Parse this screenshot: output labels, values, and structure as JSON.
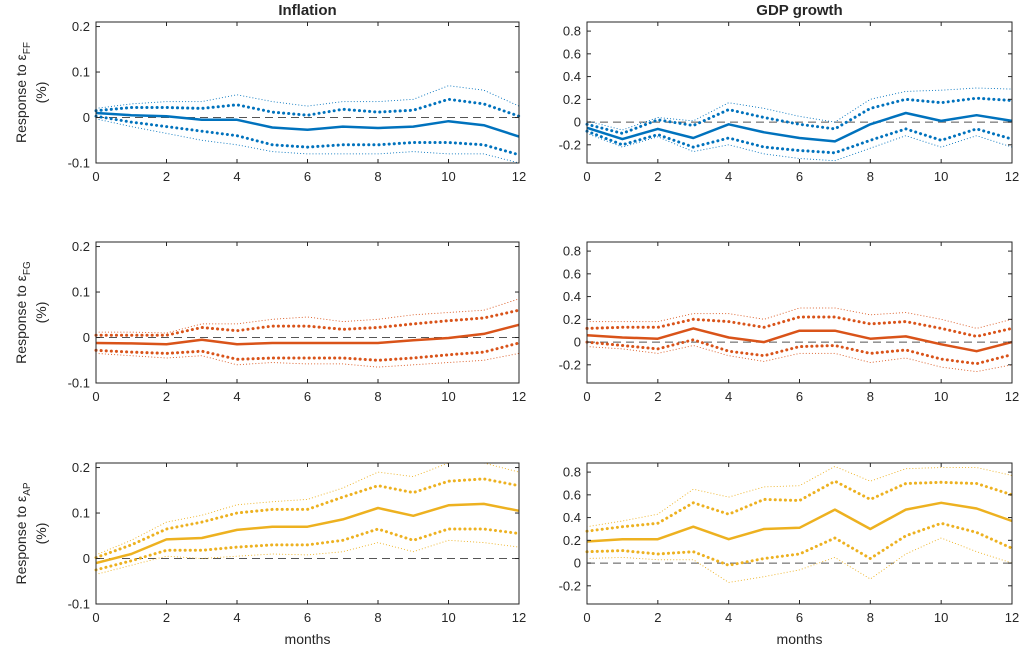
{
  "chart_data": [
    {
      "type": "line",
      "title": "Inflation",
      "ylabel_pre": "Response to ε",
      "ylabel_sub": "FF",
      "ylabel_unit": "(%)",
      "xlabel": "",
      "x": [
        0,
        1,
        2,
        3,
        4,
        5,
        6,
        7,
        8,
        9,
        10,
        11,
        12
      ],
      "xticks": [
        0,
        2,
        4,
        6,
        8,
        10,
        12
      ],
      "yticks": [
        -0.1,
        0,
        0.1,
        0.2
      ],
      "ytick_labels": [
        "-0.1",
        "0",
        "0.1",
        "0.2"
      ],
      "ylim": [
        -0.1,
        0.21
      ],
      "color": "#0072BD",
      "median": [
        0.01,
        0.005,
        0.003,
        -0.005,
        -0.005,
        -0.022,
        -0.027,
        -0.02,
        -0.023,
        -0.02,
        -0.008,
        -0.017,
        -0.042
      ],
      "inner_upper": [
        0.015,
        0.022,
        0.022,
        0.02,
        0.028,
        0.012,
        0.005,
        0.018,
        0.012,
        0.016,
        0.04,
        0.03,
        0.003
      ],
      "inner_lower": [
        0.003,
        -0.01,
        -0.02,
        -0.03,
        -0.04,
        -0.06,
        -0.065,
        -0.06,
        -0.06,
        -0.055,
        -0.055,
        -0.06,
        -0.082
      ],
      "outer_upper": [
        0.02,
        0.03,
        0.035,
        0.035,
        0.05,
        0.035,
        0.025,
        0.035,
        0.035,
        0.04,
        0.07,
        0.06,
        0.025
      ],
      "outer_lower": [
        -0.003,
        -0.02,
        -0.035,
        -0.05,
        -0.06,
        -0.075,
        -0.08,
        -0.08,
        -0.08,
        -0.075,
        -0.08,
        -0.08,
        -0.1
      ]
    },
    {
      "type": "line",
      "title": "GDP growth",
      "xlabel": "",
      "x": [
        0,
        1,
        2,
        3,
        4,
        5,
        6,
        7,
        8,
        9,
        10,
        11,
        12
      ],
      "xticks": [
        0,
        2,
        4,
        6,
        8,
        10,
        12
      ],
      "yticks": [
        -0.2,
        0,
        0.2,
        0.4,
        0.6,
        0.8
      ],
      "ytick_labels": [
        "-0.2",
        "0",
        "0.2",
        "0.4",
        "0.6",
        "0.8"
      ],
      "ylim": [
        -0.36,
        0.88
      ],
      "color": "#0072BD",
      "median": [
        -0.05,
        -0.15,
        -0.06,
        -0.14,
        -0.02,
        -0.09,
        -0.14,
        -0.17,
        -0.02,
        0.08,
        0.01,
        0.06,
        0.01
      ],
      "inner_upper": [
        -0.02,
        -0.1,
        0.02,
        -0.03,
        0.11,
        0.04,
        -0.02,
        -0.06,
        0.12,
        0.2,
        0.17,
        0.21,
        0.19
      ],
      "inner_lower": [
        -0.08,
        -0.2,
        -0.11,
        -0.22,
        -0.14,
        -0.22,
        -0.25,
        -0.27,
        -0.16,
        -0.06,
        -0.16,
        -0.06,
        -0.15
      ],
      "outer_upper": [
        0.01,
        -0.07,
        0.04,
        0.01,
        0.17,
        0.12,
        0.05,
        0.0,
        0.2,
        0.27,
        0.28,
        0.3,
        0.29
      ],
      "outer_lower": [
        -0.1,
        -0.22,
        -0.13,
        -0.26,
        -0.2,
        -0.28,
        -0.32,
        -0.34,
        -0.23,
        -0.12,
        -0.22,
        -0.12,
        -0.22
      ]
    },
    {
      "type": "line",
      "title": "",
      "ylabel_pre": "Response to ε",
      "ylabel_sub": "FG",
      "ylabel_unit": "(%)",
      "xlabel": "",
      "x": [
        0,
        1,
        2,
        3,
        4,
        5,
        6,
        7,
        8,
        9,
        10,
        11,
        12
      ],
      "xticks": [
        0,
        2,
        4,
        6,
        8,
        10,
        12
      ],
      "yticks": [
        -0.1,
        0,
        0.1,
        0.2
      ],
      "ytick_labels": [
        "-0.1",
        "0",
        "0.1",
        "0.2"
      ],
      "ylim": [
        -0.1,
        0.21
      ],
      "color": "#D95319",
      "median": [
        -0.012,
        -0.013,
        -0.015,
        -0.005,
        -0.015,
        -0.012,
        -0.012,
        -0.012,
        -0.012,
        -0.006,
        -0.001,
        0.008,
        0.028
      ],
      "inner_upper": [
        0.005,
        0.005,
        0.005,
        0.022,
        0.015,
        0.025,
        0.025,
        0.018,
        0.022,
        0.03,
        0.037,
        0.043,
        0.06
      ],
      "inner_lower": [
        -0.028,
        -0.032,
        -0.035,
        -0.03,
        -0.048,
        -0.045,
        -0.045,
        -0.045,
        -0.05,
        -0.045,
        -0.038,
        -0.032,
        -0.012
      ],
      "outer_upper": [
        0.012,
        0.012,
        0.01,
        0.03,
        0.03,
        0.04,
        0.045,
        0.035,
        0.04,
        0.05,
        0.055,
        0.06,
        0.085
      ],
      "outer_lower": [
        -0.035,
        -0.04,
        -0.045,
        -0.04,
        -0.06,
        -0.055,
        -0.058,
        -0.058,
        -0.065,
        -0.06,
        -0.055,
        -0.05,
        -0.035
      ]
    },
    {
      "type": "line",
      "title": "",
      "xlabel": "",
      "x": [
        0,
        1,
        2,
        3,
        4,
        5,
        6,
        7,
        8,
        9,
        10,
        11,
        12
      ],
      "xticks": [
        0,
        2,
        4,
        6,
        8,
        10,
        12
      ],
      "yticks": [
        -0.2,
        0,
        0.2,
        0.4,
        0.6,
        0.8
      ],
      "ytick_labels": [
        "-0.2",
        "0",
        "0.2",
        "0.4",
        "0.6",
        "0.8"
      ],
      "ylim": [
        -0.36,
        0.88
      ],
      "color": "#D95319",
      "median": [
        0.06,
        0.04,
        0.03,
        0.12,
        0.04,
        0.0,
        0.1,
        0.1,
        0.03,
        0.05,
        -0.02,
        -0.08,
        0.0
      ],
      "inner_upper": [
        0.12,
        0.13,
        0.13,
        0.2,
        0.18,
        0.13,
        0.22,
        0.22,
        0.16,
        0.18,
        0.12,
        0.05,
        0.12
      ],
      "inner_lower": [
        0.0,
        -0.03,
        -0.06,
        0.02,
        -0.08,
        -0.12,
        -0.04,
        -0.03,
        -0.1,
        -0.07,
        -0.15,
        -0.19,
        -0.11
      ],
      "outer_upper": [
        0.18,
        0.18,
        0.18,
        0.25,
        0.25,
        0.2,
        0.3,
        0.3,
        0.24,
        0.26,
        0.2,
        0.12,
        0.2
      ],
      "outer_lower": [
        -0.04,
        -0.06,
        -0.1,
        -0.03,
        -0.12,
        -0.17,
        -0.1,
        -0.1,
        -0.18,
        -0.14,
        -0.22,
        -0.26,
        -0.2
      ]
    },
    {
      "type": "line",
      "title": "",
      "ylabel_pre": "Response to ε",
      "ylabel_sub": "AP",
      "ylabel_unit": "(%)",
      "xlabel": "months",
      "x": [
        0,
        1,
        2,
        3,
        4,
        5,
        6,
        7,
        8,
        9,
        10,
        11,
        12
      ],
      "xticks": [
        0,
        2,
        4,
        6,
        8,
        10,
        12
      ],
      "yticks": [
        -0.1,
        0,
        0.1,
        0.2
      ],
      "ytick_labels": [
        "-0.1",
        "0",
        "0.1",
        "0.2"
      ],
      "ylim": [
        -0.1,
        0.21
      ],
      "color": "#EDB120",
      "median": [
        -0.01,
        0.01,
        0.042,
        0.045,
        0.063,
        0.07,
        0.07,
        0.086,
        0.111,
        0.094,
        0.117,
        0.12,
        0.105
      ],
      "inner_upper": [
        0.002,
        0.03,
        0.065,
        0.08,
        0.1,
        0.108,
        0.108,
        0.135,
        0.16,
        0.145,
        0.17,
        0.175,
        0.16
      ],
      "inner_lower": [
        -0.025,
        -0.005,
        0.018,
        0.018,
        0.025,
        0.03,
        0.03,
        0.04,
        0.065,
        0.04,
        0.065,
        0.065,
        0.055
      ],
      "outer_upper": [
        0.008,
        0.04,
        0.08,
        0.095,
        0.118,
        0.125,
        0.13,
        0.155,
        0.19,
        0.18,
        0.21,
        0.21,
        0.19
      ],
      "outer_lower": [
        -0.035,
        -0.015,
        0.005,
        0.0,
        0.005,
        0.01,
        0.008,
        0.015,
        0.035,
        0.015,
        0.04,
        0.035,
        0.025
      ]
    },
    {
      "type": "line",
      "title": "",
      "xlabel": "months",
      "x": [
        0,
        1,
        2,
        3,
        4,
        5,
        6,
        7,
        8,
        9,
        10,
        11,
        12
      ],
      "xticks": [
        0,
        2,
        4,
        6,
        8,
        10,
        12
      ],
      "yticks": [
        -0.2,
        0,
        0.2,
        0.4,
        0.6,
        0.8
      ],
      "ytick_labels": [
        "-0.2",
        "0",
        "0.2",
        "0.4",
        "0.6",
        "0.8"
      ],
      "ylim": [
        -0.36,
        0.88
      ],
      "color": "#EDB120",
      "median": [
        0.19,
        0.21,
        0.21,
        0.32,
        0.21,
        0.3,
        0.31,
        0.47,
        0.3,
        0.47,
        0.53,
        0.48,
        0.37
      ],
      "inner_upper": [
        0.28,
        0.32,
        0.35,
        0.53,
        0.43,
        0.56,
        0.55,
        0.72,
        0.56,
        0.7,
        0.71,
        0.7,
        0.6
      ],
      "inner_lower": [
        0.1,
        0.11,
        0.08,
        0.1,
        -0.02,
        0.04,
        0.08,
        0.22,
        0.04,
        0.24,
        0.35,
        0.27,
        0.13
      ],
      "outer_upper": [
        0.32,
        0.37,
        0.43,
        0.65,
        0.58,
        0.67,
        0.68,
        0.85,
        0.72,
        0.83,
        0.84,
        0.84,
        0.77
      ],
      "outer_lower": [
        0.04,
        0.05,
        0.03,
        0.03,
        -0.17,
        -0.12,
        -0.06,
        0.05,
        -0.14,
        0.08,
        0.22,
        0.1,
        0.0
      ]
    }
  ]
}
